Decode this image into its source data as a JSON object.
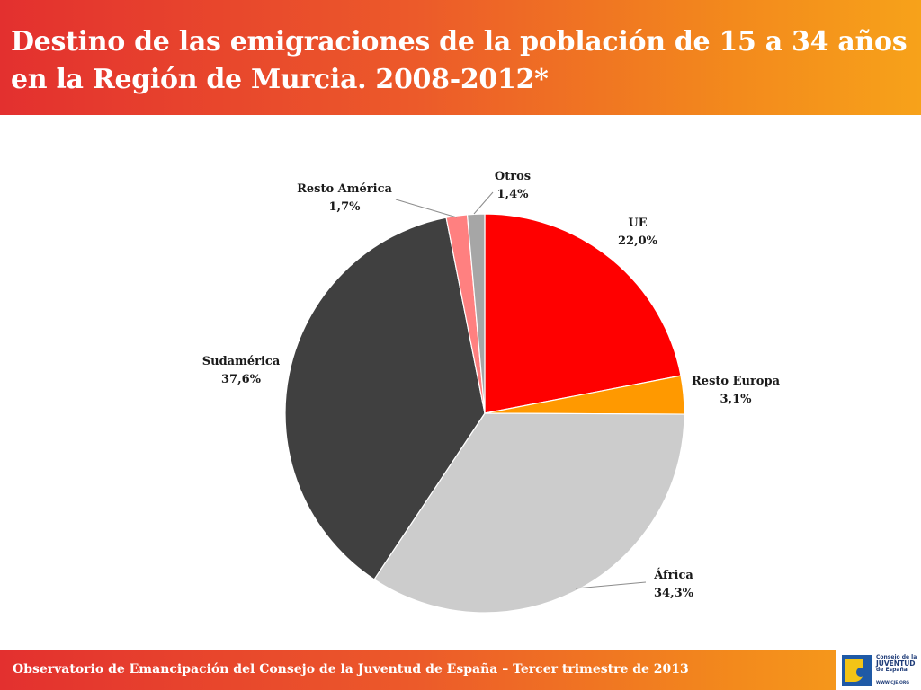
{
  "header": {
    "title": "Destino de las emigraciones de la población de 15 a 34 años en la Región de Murcia. 2008-2012*"
  },
  "chart_data": {
    "type": "pie",
    "title": "Destino de las emigraciones de la población de 15 a 34 años en la Región de Murcia. 2008-2012*",
    "slices": [
      {
        "label": "UE",
        "value": 22.0,
        "display": "22,0%",
        "color": "#ff0000"
      },
      {
        "label": "Resto Europa",
        "value": 3.1,
        "display": "3,1%",
        "color": "#ff9900"
      },
      {
        "label": "África",
        "value": 34.3,
        "display": "34,3%",
        "color": "#cccccc"
      },
      {
        "label": "Sudamérica",
        "value": 37.6,
        "display": "37,6%",
        "color": "#404040"
      },
      {
        "label": "Resto América",
        "value": 1.7,
        "display": "1,7%",
        "color": "#ff8080"
      },
      {
        "label": "Otros",
        "value": 1.4,
        "display": "1,4%",
        "color": "#a6a6a6"
      }
    ],
    "start_angle_deg": 0,
    "direction": "clockwise",
    "legend": "none"
  },
  "footer": {
    "text": "Observatorio de Emancipación del Consejo de la Juventud de España – Tercer trimestre de 2013"
  },
  "logo": {
    "line1": "Consejo de la",
    "line2": "JUVENTUD",
    "line3": "de España",
    "url": "WWW.CJE.ORG"
  }
}
